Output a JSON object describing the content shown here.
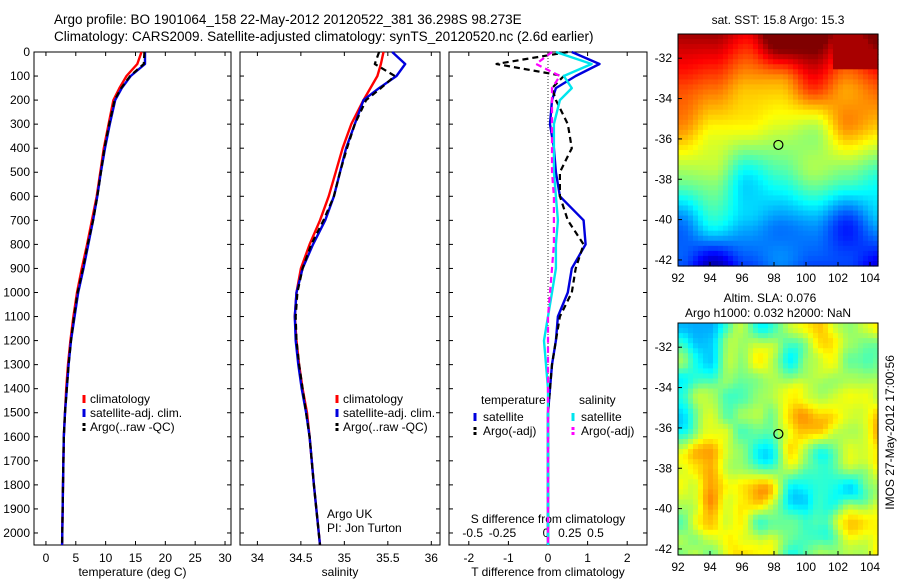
{
  "header": {
    "line1": "Argo profile: BO 1901064_158 22-May-2012 20120522_381 36.298S 98.273E",
    "line2": "Climatology: CARS2009. Satellite-adjusted climatology: synTS_20120520.nc (2.6d earlier)"
  },
  "side_label": "IMOS 27-May-2012 17:00:56",
  "colors": {
    "red": "#ff0000",
    "blue": "#0000dd",
    "black": "#000000",
    "cyan": "#00e5ee",
    "magenta": "#ff00ff"
  },
  "chart_data": [
    {
      "type": "line",
      "id": "temperature",
      "xlabel": "temperature (deg C)",
      "xlim": [
        -2,
        31
      ],
      "ylim": [
        2050,
        0
      ],
      "xticks": [
        0,
        5,
        10,
        15,
        20,
        25,
        30
      ],
      "yticks": [
        0,
        100,
        200,
        300,
        400,
        500,
        600,
        700,
        800,
        900,
        1000,
        1100,
        1200,
        1300,
        1400,
        1500,
        1600,
        1700,
        1800,
        1900,
        2000
      ],
      "legend": [
        "climatology",
        "satellite-adj. clim.",
        "Argo(..raw -QC)"
      ],
      "series": [
        {
          "name": "climatology",
          "color": "red",
          "dash": false,
          "x": [
            16,
            15.3,
            13.5,
            12.3,
            11.3,
            10.5,
            9.7,
            9.1,
            8.5,
            7.7,
            6.9,
            6.0,
            5.2,
            4.6,
            4.1,
            3.7,
            3.4,
            3.2,
            3.0,
            2.85,
            2.7
          ],
          "y": [
            0,
            50,
            100,
            150,
            200,
            300,
            400,
            500,
            600,
            700,
            800,
            900,
            1000,
            1100,
            1200,
            1300,
            1400,
            1500,
            1600,
            1800,
            2050
          ]
        },
        {
          "name": "satellite-adj. clim.",
          "color": "blue",
          "dash": false,
          "x": [
            16.6,
            16.6,
            14.2,
            12.7,
            11.6,
            10.7,
            9.9,
            9.2,
            8.6,
            7.9,
            7.1,
            6.3,
            5.4,
            4.8,
            4.2,
            3.8,
            3.5,
            3.2,
            3.0,
            2.85,
            2.7
          ],
          "y": [
            0,
            50,
            100,
            150,
            200,
            300,
            400,
            500,
            600,
            700,
            800,
            900,
            1000,
            1100,
            1200,
            1300,
            1400,
            1500,
            1600,
            1800,
            2050
          ]
        },
        {
          "name": "Argo(..raw -QC)",
          "color": "black",
          "dash": true,
          "x": [
            16.5,
            16.4,
            14.1,
            12.6,
            11.5,
            10.6,
            9.8,
            9.2,
            8.6,
            7.9,
            7.0,
            6.2,
            5.3,
            4.7,
            4.2,
            3.8,
            3.5,
            3.2,
            3.0,
            2.85,
            2.7
          ],
          "y": [
            0,
            50,
            100,
            150,
            200,
            300,
            400,
            500,
            600,
            700,
            800,
            900,
            1000,
            1100,
            1200,
            1300,
            1400,
            1500,
            1600,
            1800,
            2050
          ]
        }
      ]
    },
    {
      "type": "line",
      "id": "salinity",
      "xlabel": "salinity",
      "xlim": [
        33.8,
        36.1
      ],
      "ylim": [
        2050,
        0
      ],
      "xticks": [
        34,
        34.5,
        35,
        35.5,
        36
      ],
      "legend": [
        "climatology",
        "satellite-adj. clim.",
        "Argo(..raw -QC)"
      ],
      "annotation": [
        "Argo UK",
        "PI: Jon Turton"
      ],
      "series": [
        {
          "name": "climatology",
          "color": "red",
          "dash": false,
          "x": [
            35.45,
            35.42,
            35.38,
            35.3,
            35.22,
            35.08,
            34.98,
            34.9,
            34.82,
            34.72,
            34.6,
            34.5,
            34.45,
            34.43,
            34.45,
            34.48,
            34.52,
            34.57,
            34.6,
            34.65,
            34.72
          ],
          "y": [
            0,
            50,
            100,
            150,
            200,
            300,
            400,
            500,
            600,
            700,
            800,
            900,
            1000,
            1100,
            1200,
            1300,
            1400,
            1500,
            1600,
            1800,
            2050
          ]
        },
        {
          "name": "satellite-adj. clim.",
          "color": "blue",
          "dash": false,
          "x": [
            35.55,
            35.7,
            35.6,
            35.4,
            35.22,
            35.12,
            35.02,
            34.95,
            34.88,
            34.78,
            34.64,
            34.52,
            34.45,
            34.43,
            34.44,
            34.47,
            34.51,
            34.56,
            34.6,
            34.65,
            34.72
          ],
          "y": [
            0,
            50,
            100,
            150,
            200,
            300,
            400,
            500,
            600,
            700,
            800,
            900,
            1000,
            1100,
            1200,
            1300,
            1400,
            1500,
            1600,
            1800,
            2050
          ]
        },
        {
          "name": "Argo(..raw -QC)",
          "color": "black",
          "dash": true,
          "x": [
            35.4,
            35.35,
            35.58,
            35.42,
            35.25,
            35.12,
            35.03,
            34.95,
            34.88,
            34.76,
            34.62,
            34.52,
            34.46,
            34.44,
            34.45,
            34.48,
            34.52,
            34.56,
            34.6,
            34.65,
            34.72
          ],
          "y": [
            0,
            50,
            100,
            150,
            200,
            300,
            400,
            500,
            600,
            700,
            800,
            900,
            1000,
            1100,
            1200,
            1300,
            1400,
            1500,
            1600,
            1800,
            2050
          ]
        }
      ]
    },
    {
      "type": "line",
      "id": "difference",
      "xlabel": "T difference from climatology",
      "xlabel_top": "S difference from climatology",
      "xlim": [
        -2.5,
        2.5
      ],
      "ylim": [
        2050,
        0
      ],
      "xticks": [
        -2,
        -1,
        0,
        1,
        2
      ],
      "xticks_salinity": [
        -0.5,
        -0.25,
        0,
        0.25,
        0.5
      ],
      "legend_groups": [
        {
          "title": "temperature",
          "items": [
            "satellite",
            "Argo(-adj)"
          ]
        },
        {
          "title": "salinity",
          "items": [
            "satellite",
            "Argo(-adj)"
          ]
        }
      ],
      "series": [
        {
          "name": "T satellite",
          "group": "temperature",
          "color": "blue",
          "dash": false,
          "x": [
            0.6,
            1.3,
            0.7,
            0.2,
            0.1,
            0.05,
            0.15,
            0.2,
            0.3,
            0.9,
            0.95,
            0.6,
            0.5,
            0.25,
            0.2,
            0.1,
            0.05,
            0.0,
            0.0,
            0.0,
            0.0
          ],
          "y": [
            0,
            50,
            100,
            150,
            200,
            300,
            400,
            500,
            600,
            700,
            800,
            900,
            1000,
            1100,
            1200,
            1300,
            1400,
            1500,
            1600,
            1800,
            2050
          ]
        },
        {
          "name": "T Argo(-adj)",
          "group": "temperature",
          "color": "black",
          "dash": true,
          "x": [
            0.5,
            -1.3,
            0.4,
            0.1,
            0.2,
            0.5,
            0.6,
            0.3,
            0.3,
            0.5,
            0.9,
            0.7,
            0.6,
            0.3,
            0.2,
            0.1,
            0.05,
            0.0,
            0.0,
            0.0,
            0.0
          ],
          "y": [
            0,
            50,
            100,
            150,
            200,
            300,
            400,
            500,
            600,
            700,
            800,
            900,
            1000,
            1100,
            1200,
            1300,
            1400,
            1500,
            1600,
            1800,
            2050
          ]
        },
        {
          "name": "S satellite",
          "group": "salinity",
          "color": "cyan",
          "dash": false,
          "x": [
            0.2,
            1.1,
            0.4,
            0.6,
            0.3,
            0.15,
            0.15,
            0.15,
            0.2,
            0.25,
            0.2,
            0.2,
            0.1,
            0.0,
            -0.1,
            -0.05,
            0.0,
            0.0,
            0.0,
            0.0,
            0.0
          ],
          "y": [
            0,
            50,
            100,
            150,
            200,
            300,
            400,
            500,
            600,
            700,
            800,
            900,
            1000,
            1100,
            1200,
            1300,
            1400,
            1500,
            1600,
            1800,
            2050
          ]
        },
        {
          "name": "S Argo(-adj)",
          "group": "salinity",
          "color": "magenta",
          "dash": true,
          "x": [
            0.1,
            -0.3,
            0.3,
            0.1,
            0.1,
            0.1,
            0.1,
            0.1,
            0.15,
            0.15,
            0.15,
            0.1,
            0.05,
            0.0,
            0.0,
            0.0,
            0.0,
            0.0,
            0.0,
            0.0,
            0.0
          ],
          "y": [
            0,
            50,
            100,
            150,
            200,
            300,
            400,
            500,
            600,
            700,
            800,
            900,
            1000,
            1100,
            1200,
            1300,
            1400,
            1500,
            1600,
            1800,
            2050
          ]
        }
      ]
    },
    {
      "type": "heatmap",
      "id": "sst_map",
      "title": "sat. SST: 15.8 Argo: 15.3",
      "xlim": [
        92,
        104.5
      ],
      "ylim": [
        -42.3,
        -30.8
      ],
      "xticks": [
        92,
        94,
        96,
        98,
        100,
        102,
        104
      ],
      "yticks": [
        -32,
        -34,
        -36,
        -38,
        -40,
        -42
      ],
      "marker": {
        "lon": 98.273,
        "lat": -36.298
      }
    },
    {
      "type": "heatmap",
      "id": "sla_map",
      "title": "Altim. SLA: 0.076",
      "subtitle": "Argo h1000: 0.032 h2000: NaN",
      "xlim": [
        92,
        104.5
      ],
      "ylim": [
        -42.3,
        -30.8
      ],
      "xticks": [
        92,
        94,
        96,
        98,
        100,
        102,
        104
      ],
      "yticks": [
        -32,
        -34,
        -36,
        -38,
        -40,
        -42
      ],
      "marker": {
        "lon": 98.273,
        "lat": -36.298
      }
    }
  ]
}
